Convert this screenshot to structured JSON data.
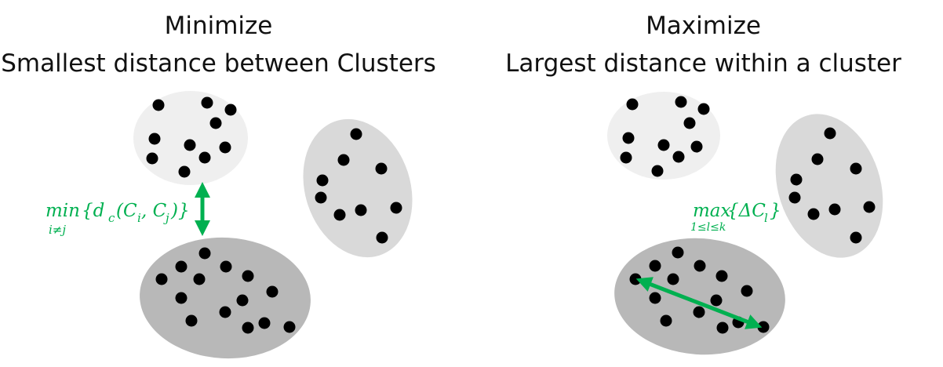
{
  "colors": {
    "ellipse_light": "#efefef",
    "ellipse_mid": "#d9d9d9",
    "ellipse_dark": "#b8b8b8",
    "point": "#000000",
    "accent": "#00b050",
    "text": "#111111"
  },
  "left": {
    "title": "Minimize",
    "subtitle": "Smallest distance between Clusters",
    "formula_op": "min",
    "formula_sub": "i≠j",
    "formula_body": "{d",
    "formula_body_sub": "c",
    "formula_args": "(C",
    "formula_i": "i",
    "formula_comma": ", C",
    "formula_j": "j",
    "formula_close": ")}"
  },
  "right": {
    "title": "Maximize",
    "subtitle": "Largest distance within a cluster",
    "formula_op": "max",
    "formula_sub": "1≤l≤k",
    "formula_body": "{ΔC",
    "formula_l": "l",
    "formula_close": "}"
  }
}
